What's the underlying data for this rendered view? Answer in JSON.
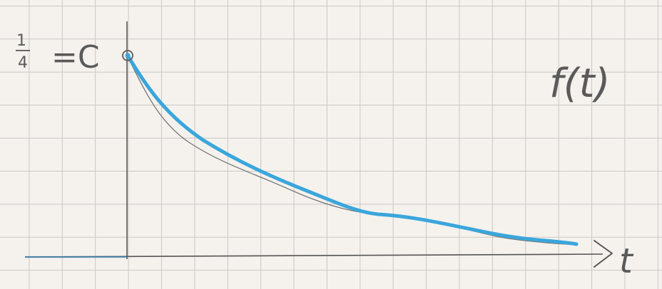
{
  "diagram": {
    "y_intercept_label_num": "1",
    "y_intercept_label_den": "4",
    "y_intercept_label_eq": "=C",
    "function_label": "f(t)",
    "x_axis_label": "t",
    "colors": {
      "curve": "#3aa6dc",
      "pencil": "#666666",
      "axis": "#555555"
    }
  }
}
